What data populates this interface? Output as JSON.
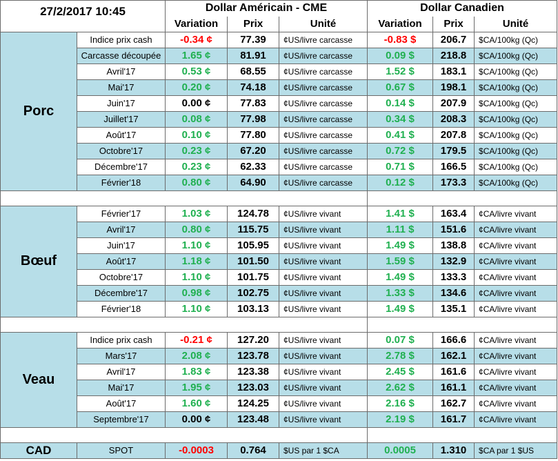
{
  "header": {
    "datetime": "27/2/2017 10:45",
    "usd_title": "Dollar Américain - CME",
    "cad_title": "Dollar Canadien",
    "columns": [
      "Variation",
      "Prix",
      "Unité",
      "Variation",
      "Prix",
      "Unité"
    ]
  },
  "sections": [
    {
      "name": "Porc",
      "rows": [
        [
          "Indice prix cash",
          "-0.34 ¢",
          "77.39",
          "¢US/livre carcasse",
          "-0.83 $",
          "206.7",
          "$CA/100kg (Qc)"
        ],
        [
          "Carcasse découpée",
          "1.65 ¢",
          "81.91",
          "¢US/livre carcasse",
          "0.09 $",
          "218.8",
          "$CA/100kg (Qc)"
        ],
        [
          "Avril'17",
          "0.53 ¢",
          "68.55",
          "¢US/livre carcasse",
          "1.52 $",
          "183.1",
          "$CA/100kg (Qc)"
        ],
        [
          "Mai'17",
          "0.20 ¢",
          "74.18",
          "¢US/livre carcasse",
          "0.67 $",
          "198.1",
          "$CA/100kg (Qc)"
        ],
        [
          "Juin'17",
          "0.00 ¢",
          "77.83",
          "¢US/livre carcasse",
          "0.14 $",
          "207.9",
          "$CA/100kg (Qc)"
        ],
        [
          "Juillet'17",
          "0.08 ¢",
          "77.98",
          "¢US/livre carcasse",
          "0.34 $",
          "208.3",
          "$CA/100kg (Qc)"
        ],
        [
          "Août'17",
          "0.10 ¢",
          "77.80",
          "¢US/livre carcasse",
          "0.41 $",
          "207.8",
          "$CA/100kg (Qc)"
        ],
        [
          "Octobre'17",
          "0.23 ¢",
          "67.20",
          "¢US/livre carcasse",
          "0.72 $",
          "179.5",
          "$CA/100kg (Qc)"
        ],
        [
          "Décembre'17",
          "0.23 ¢",
          "62.33",
          "¢US/livre carcasse",
          "0.71 $",
          "166.5",
          "$CA/100kg (Qc)"
        ],
        [
          "Février'18",
          "0.80 ¢",
          "64.90",
          "¢US/livre carcasse",
          "0.12 $",
          "173.3",
          "$CA/100kg (Qc)"
        ]
      ]
    },
    {
      "name": "Bœuf",
      "rows": [
        [
          "Février'17",
          "1.03 ¢",
          "124.78",
          "¢US/livre vivant",
          "1.41 $",
          "163.4",
          "¢CA/livre vivant"
        ],
        [
          "Avril'17",
          "0.80 ¢",
          "115.75",
          "¢US/livre vivant",
          "1.11 $",
          "151.6",
          "¢CA/livre vivant"
        ],
        [
          "Juin'17",
          "1.10 ¢",
          "105.95",
          "¢US/livre vivant",
          "1.49 $",
          "138.8",
          "¢CA/livre vivant"
        ],
        [
          "Août'17",
          "1.18 ¢",
          "101.50",
          "¢US/livre vivant",
          "1.59 $",
          "132.9",
          "¢CA/livre vivant"
        ],
        [
          "Octobre'17",
          "1.10 ¢",
          "101.75",
          "¢US/livre vivant",
          "1.49 $",
          "133.3",
          "¢CA/livre vivant"
        ],
        [
          "Décembre'17",
          "0.98 ¢",
          "102.75",
          "¢US/livre vivant",
          "1.33 $",
          "134.6",
          "¢CA/livre vivant"
        ],
        [
          "Février'18",
          "1.10 ¢",
          "103.13",
          "¢US/livre vivant",
          "1.49 $",
          "135.1",
          "¢CA/livre vivant"
        ]
      ]
    },
    {
      "name": "Veau",
      "rows": [
        [
          "Indice prix cash",
          "-0.21 ¢",
          "127.20",
          "¢US/livre vivant",
          "0.07 $",
          "166.6",
          "¢CA/livre vivant"
        ],
        [
          "Mars'17",
          "2.08 ¢",
          "123.78",
          "¢US/livre vivant",
          "2.78 $",
          "162.1",
          "¢CA/livre vivant"
        ],
        [
          "Avril'17",
          "1.83 ¢",
          "123.38",
          "¢US/livre vivant",
          "2.45 $",
          "161.6",
          "¢CA/livre vivant"
        ],
        [
          "Mai'17",
          "1.95 ¢",
          "123.03",
          "¢US/livre vivant",
          "2.62 $",
          "161.1",
          "¢CA/livre vivant"
        ],
        [
          "Août'17",
          "1.60 ¢",
          "124.25",
          "¢US/livre vivant",
          "2.16 $",
          "162.7",
          "¢CA/livre vivant"
        ],
        [
          "Septembre'17",
          "0.00 ¢",
          "123.48",
          "¢US/livre vivant",
          "2.19 $",
          "161.7",
          "¢CA/livre vivant"
        ]
      ]
    }
  ],
  "spot": {
    "name": "CAD",
    "row": [
      "SPOT",
      "-0.0003",
      "0.764",
      "$US par 1 $CA",
      "0.0005",
      "1.310",
      "$CA par 1 $US"
    ]
  }
}
